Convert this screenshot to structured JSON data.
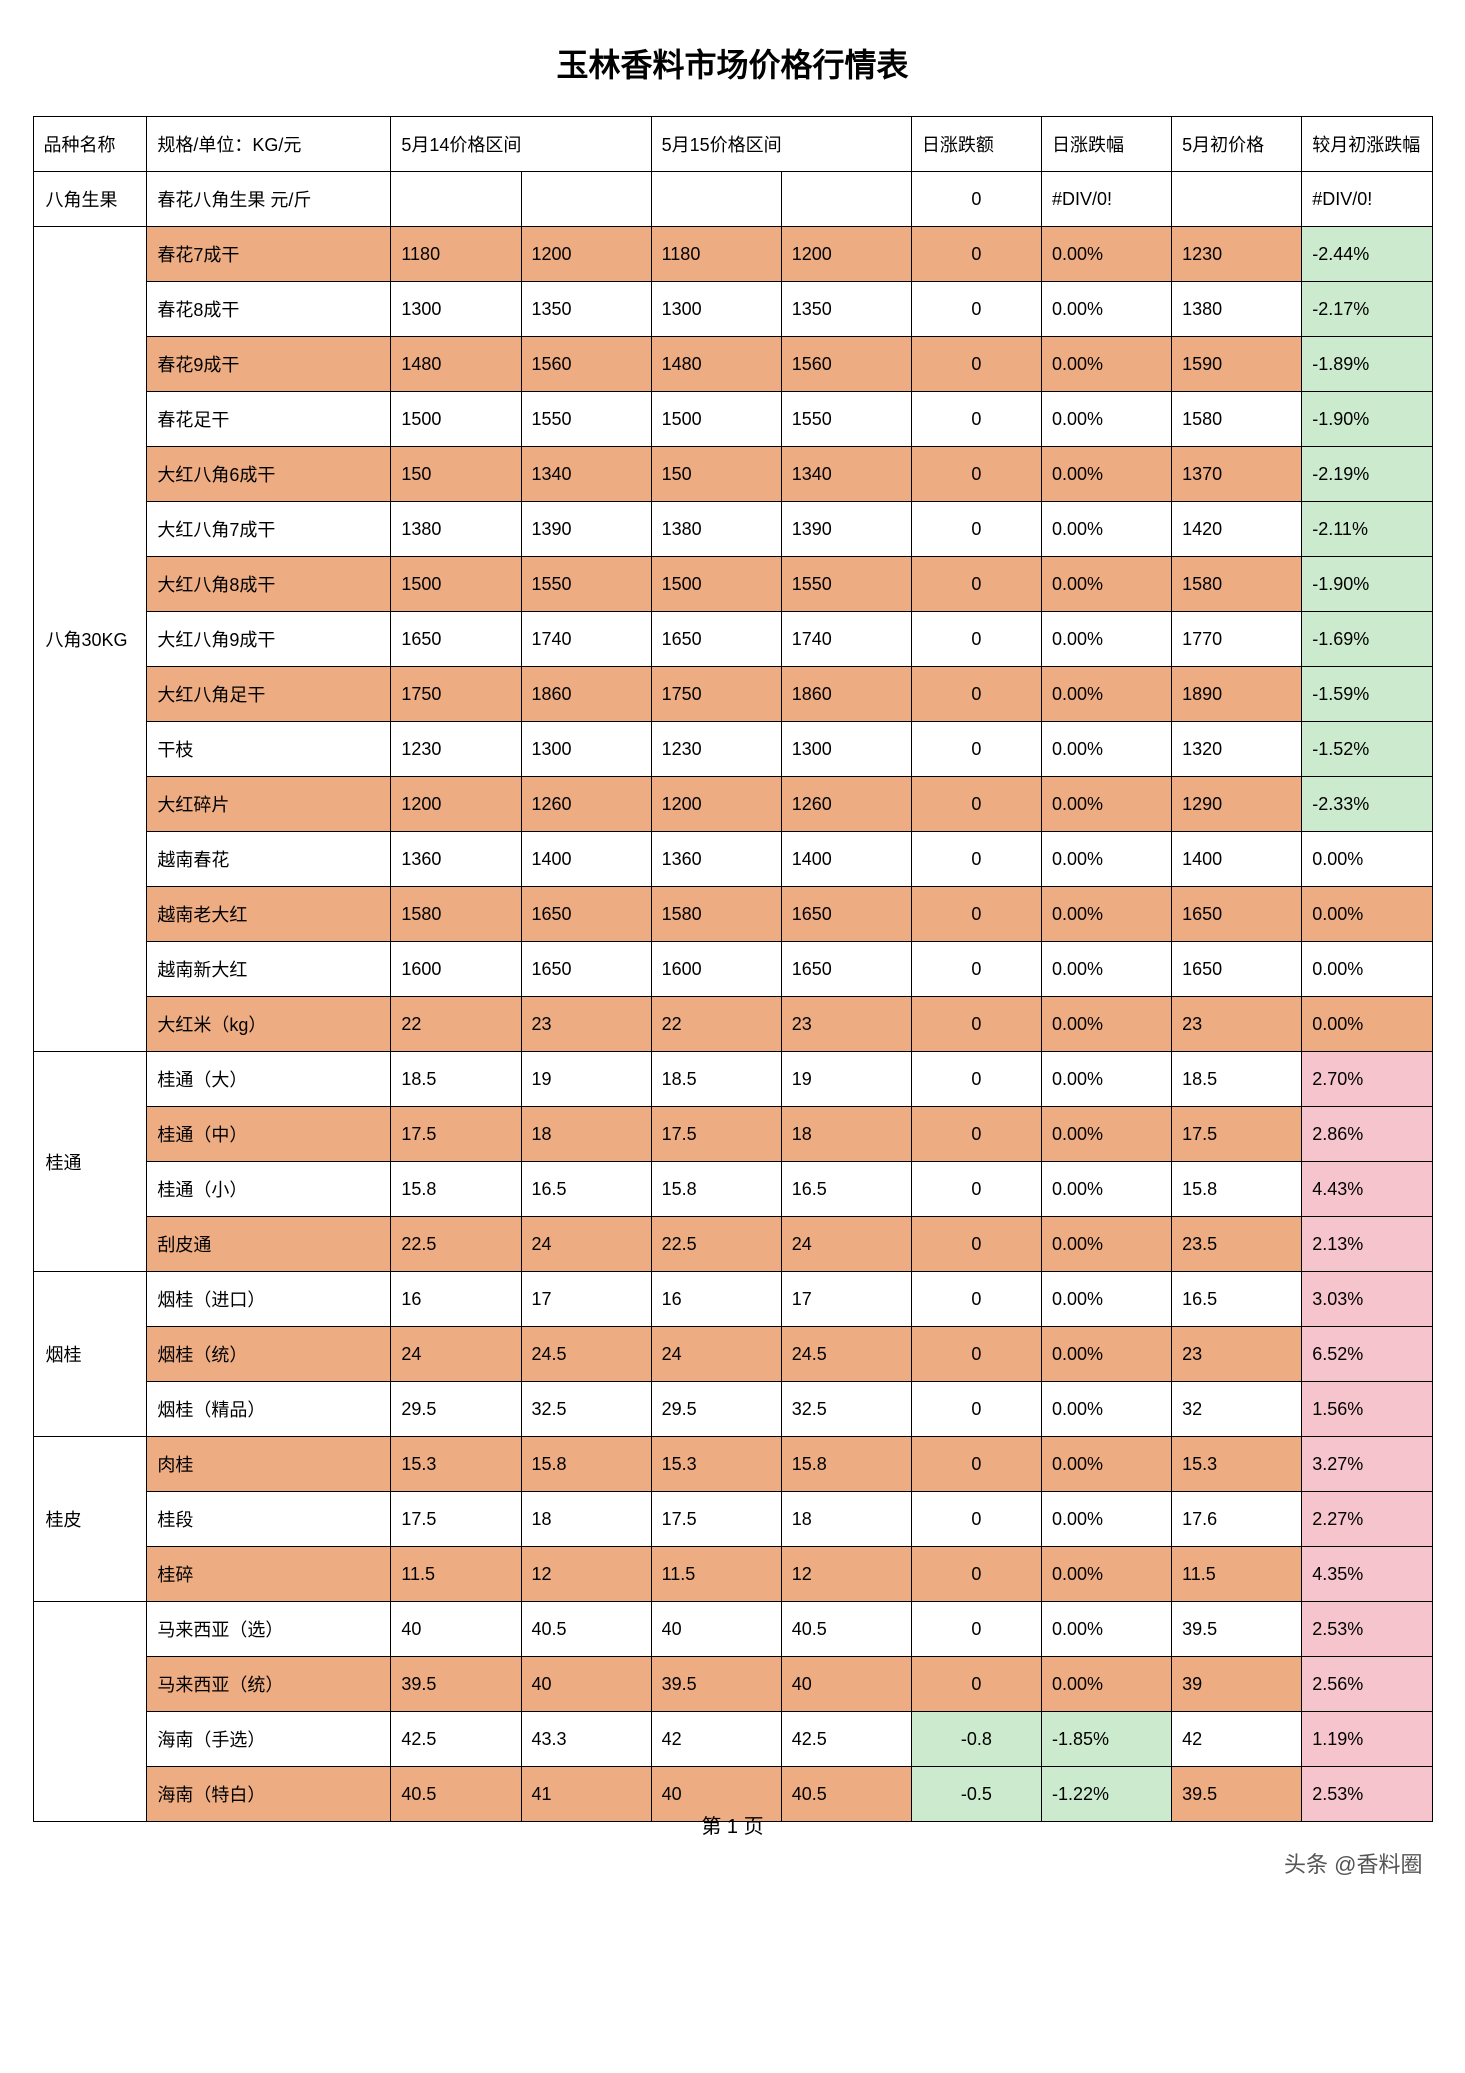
{
  "title": "玉林香料市场价格行情表",
  "footer": "第 1 页",
  "watermark": "头条 @香料圈",
  "colors": {
    "orange": "#eeac82",
    "green": "#cceace",
    "pink": "#f6c4cd",
    "white": "#ffffff"
  },
  "headers": {
    "category": "品种名称",
    "spec": "规格/单位：KG/元",
    "range14": "5月14价格区间",
    "range15": "5月15价格区间",
    "daily_amt": "日涨跌额",
    "daily_pct": "日涨跌幅",
    "early": "5月初价格",
    "month_pct": "较月初涨跌幅"
  },
  "groups": [
    {
      "name": "八角生果",
      "rows": [
        {
          "spec": "春花八角生果 元/斤",
          "p14a": "",
          "p14b": "",
          "p15a": "",
          "p15b": "",
          "da": "0",
          "dp": "#DIV/0!",
          "early": "",
          "mp": "#DIV/0!",
          "bg": "white",
          "mpc": "white"
        }
      ]
    },
    {
      "name": "八角30KG",
      "rows": [
        {
          "spec": "春花7成干",
          "p14a": "1180",
          "p14b": "1200",
          "p15a": "1180",
          "p15b": "1200",
          "da": "0",
          "dp": "0.00%",
          "early": "1230",
          "mp": "-2.44%",
          "bg": "orange",
          "mpc": "green"
        },
        {
          "spec": "春花8成干",
          "p14a": "1300",
          "p14b": "1350",
          "p15a": "1300",
          "p15b": "1350",
          "da": "0",
          "dp": "0.00%",
          "early": "1380",
          "mp": "-2.17%",
          "bg": "white",
          "mpc": "green"
        },
        {
          "spec": "春花9成干",
          "p14a": "1480",
          "p14b": "1560",
          "p15a": "1480",
          "p15b": "1560",
          "da": "0",
          "dp": "0.00%",
          "early": "1590",
          "mp": "-1.89%",
          "bg": "orange",
          "mpc": "green"
        },
        {
          "spec": "春花足干",
          "p14a": "1500",
          "p14b": "1550",
          "p15a": "1500",
          "p15b": "1550",
          "da": "0",
          "dp": "0.00%",
          "early": "1580",
          "mp": "-1.90%",
          "bg": "white",
          "mpc": "green"
        },
        {
          "spec": "大红八角6成干",
          "p14a": "150",
          "p14b": "1340",
          "p15a": "150",
          "p15b": "1340",
          "da": "0",
          "dp": "0.00%",
          "early": "1370",
          "mp": "-2.19%",
          "bg": "orange",
          "mpc": "green"
        },
        {
          "spec": "大红八角7成干",
          "p14a": "1380",
          "p14b": "1390",
          "p15a": "1380",
          "p15b": "1390",
          "da": "0",
          "dp": "0.00%",
          "early": "1420",
          "mp": "-2.11%",
          "bg": "white",
          "mpc": "green"
        },
        {
          "spec": "大红八角8成干",
          "p14a": "1500",
          "p14b": "1550",
          "p15a": "1500",
          "p15b": "1550",
          "da": "0",
          "dp": "0.00%",
          "early": "1580",
          "mp": "-1.90%",
          "bg": "orange",
          "mpc": "green"
        },
        {
          "spec": "大红八角9成干",
          "p14a": "1650",
          "p14b": "1740",
          "p15a": "1650",
          "p15b": "1740",
          "da": "0",
          "dp": "0.00%",
          "early": "1770",
          "mp": "-1.69%",
          "bg": "white",
          "mpc": "green"
        },
        {
          "spec": "大红八角足干",
          "p14a": "1750",
          "p14b": "1860",
          "p15a": "1750",
          "p15b": "1860",
          "da": "0",
          "dp": "0.00%",
          "early": "1890",
          "mp": "-1.59%",
          "bg": "orange",
          "mpc": "green"
        },
        {
          "spec": "干枝",
          "p14a": "1230",
          "p14b": "1300",
          "p15a": "1230",
          "p15b": "1300",
          "da": "0",
          "dp": "0.00%",
          "early": "1320",
          "mp": "-1.52%",
          "bg": "white",
          "mpc": "green"
        },
        {
          "spec": "大红碎片",
          "p14a": "1200",
          "p14b": "1260",
          "p15a": "1200",
          "p15b": "1260",
          "da": "0",
          "dp": "0.00%",
          "early": "1290",
          "mp": "-2.33%",
          "bg": "orange",
          "mpc": "green"
        },
        {
          "spec": "越南春花",
          "p14a": "1360",
          "p14b": "1400",
          "p15a": "1360",
          "p15b": "1400",
          "da": "0",
          "dp": "0.00%",
          "early": "1400",
          "mp": "0.00%",
          "bg": "white",
          "mpc": "white"
        },
        {
          "spec": "越南老大红",
          "p14a": "1580",
          "p14b": "1650",
          "p15a": "1580",
          "p15b": "1650",
          "da": "0",
          "dp": "0.00%",
          "early": "1650",
          "mp": "0.00%",
          "bg": "orange",
          "mpc": "orange"
        },
        {
          "spec": "越南新大红",
          "p14a": "1600",
          "p14b": "1650",
          "p15a": "1600",
          "p15b": "1650",
          "da": "0",
          "dp": "0.00%",
          "early": "1650",
          "mp": "0.00%",
          "bg": "white",
          "mpc": "white"
        },
        {
          "spec": "大红米（kg）",
          "p14a": "22",
          "p14b": "23",
          "p15a": "22",
          "p15b": "23",
          "da": "0",
          "dp": "0.00%",
          "early": "23",
          "mp": "0.00%",
          "bg": "orange",
          "mpc": "orange"
        }
      ]
    },
    {
      "name": "桂通",
      "rows": [
        {
          "spec": "桂通（大）",
          "p14a": "18.5",
          "p14b": "19",
          "p15a": "18.5",
          "p15b": "19",
          "da": "0",
          "dp": "0.00%",
          "early": "18.5",
          "mp": "2.70%",
          "bg": "white",
          "mpc": "pink"
        },
        {
          "spec": "桂通（中）",
          "p14a": "17.5",
          "p14b": "18",
          "p15a": "17.5",
          "p15b": "18",
          "da": "0",
          "dp": "0.00%",
          "early": "17.5",
          "mp": "2.86%",
          "bg": "orange",
          "mpc": "pink"
        },
        {
          "spec": "桂通（小）",
          "p14a": "15.8",
          "p14b": "16.5",
          "p15a": "15.8",
          "p15b": "16.5",
          "da": "0",
          "dp": "0.00%",
          "early": "15.8",
          "mp": "4.43%",
          "bg": "white",
          "mpc": "pink"
        },
        {
          "spec": "刮皮通",
          "p14a": "22.5",
          "p14b": "24",
          "p15a": "22.5",
          "p15b": "24",
          "da": "0",
          "dp": "0.00%",
          "early": "23.5",
          "mp": "2.13%",
          "bg": "orange",
          "mpc": "pink"
        }
      ]
    },
    {
      "name": "烟桂",
      "rows": [
        {
          "spec": "烟桂（进口）",
          "p14a": "16",
          "p14b": "17",
          "p15a": "16",
          "p15b": "17",
          "da": "0",
          "dp": "0.00%",
          "early": "16.5",
          "mp": "3.03%",
          "bg": "white",
          "mpc": "pink"
        },
        {
          "spec": "烟桂（统）",
          "p14a": "24",
          "p14b": "24.5",
          "p15a": "24",
          "p15b": "24.5",
          "da": "0",
          "dp": "0.00%",
          "early": "23",
          "mp": "6.52%",
          "bg": "orange",
          "mpc": "pink"
        },
        {
          "spec": "烟桂（精品）",
          "p14a": "29.5",
          "p14b": "32.5",
          "p15a": "29.5",
          "p15b": "32.5",
          "da": "0",
          "dp": "0.00%",
          "early": "32",
          "mp": "1.56%",
          "bg": "white",
          "mpc": "pink"
        }
      ]
    },
    {
      "name": "桂皮",
      "rows": [
        {
          "spec": "肉桂",
          "p14a": "15.3",
          "p14b": "15.8",
          "p15a": "15.3",
          "p15b": "15.8",
          "da": "0",
          "dp": "0.00%",
          "early": "15.3",
          "mp": "3.27%",
          "bg": "orange",
          "mpc": "pink"
        },
        {
          "spec": "桂段",
          "p14a": "17.5",
          "p14b": "18",
          "p15a": "17.5",
          "p15b": "18",
          "da": "0",
          "dp": "0.00%",
          "early": "17.6",
          "mp": "2.27%",
          "bg": "white",
          "mpc": "pink"
        },
        {
          "spec": "桂碎",
          "p14a": "11.5",
          "p14b": "12",
          "p15a": "11.5",
          "p15b": "12",
          "da": "0",
          "dp": "0.00%",
          "early": "11.5",
          "mp": "4.35%",
          "bg": "orange",
          "mpc": "pink"
        }
      ]
    },
    {
      "name": "",
      "rows": [
        {
          "spec": "马来西亚（选）",
          "p14a": "40",
          "p14b": "40.5",
          "p15a": "40",
          "p15b": "40.5",
          "da": "0",
          "dp": "0.00%",
          "early": "39.5",
          "mp": "2.53%",
          "bg": "white",
          "mpc": "pink",
          "dac": "white",
          "dpc": "white"
        },
        {
          "spec": "马来西亚（统）",
          "p14a": "39.5",
          "p14b": "40",
          "p15a": "39.5",
          "p15b": "40",
          "da": "0",
          "dp": "0.00%",
          "early": "39",
          "mp": "2.56%",
          "bg": "orange",
          "mpc": "pink",
          "dac": "orange",
          "dpc": "orange"
        },
        {
          "spec": "海南（手选）",
          "p14a": "42.5",
          "p14b": "43.3",
          "p15a": "42",
          "p15b": "42.5",
          "da": "-0.8",
          "dp": "-1.85%",
          "early": "42",
          "mp": "1.19%",
          "bg": "white",
          "mpc": "pink",
          "dac": "green",
          "dpc": "green"
        },
        {
          "spec": "海南（特白）",
          "p14a": "40.5",
          "p14b": "41",
          "p15a": "40",
          "p15b": "40.5",
          "da": "-0.5",
          "dp": "-1.22%",
          "early": "39.5",
          "mp": "2.53%",
          "bg": "orange",
          "mpc": "pink",
          "dac": "green",
          "dpc": "green"
        }
      ]
    }
  ]
}
